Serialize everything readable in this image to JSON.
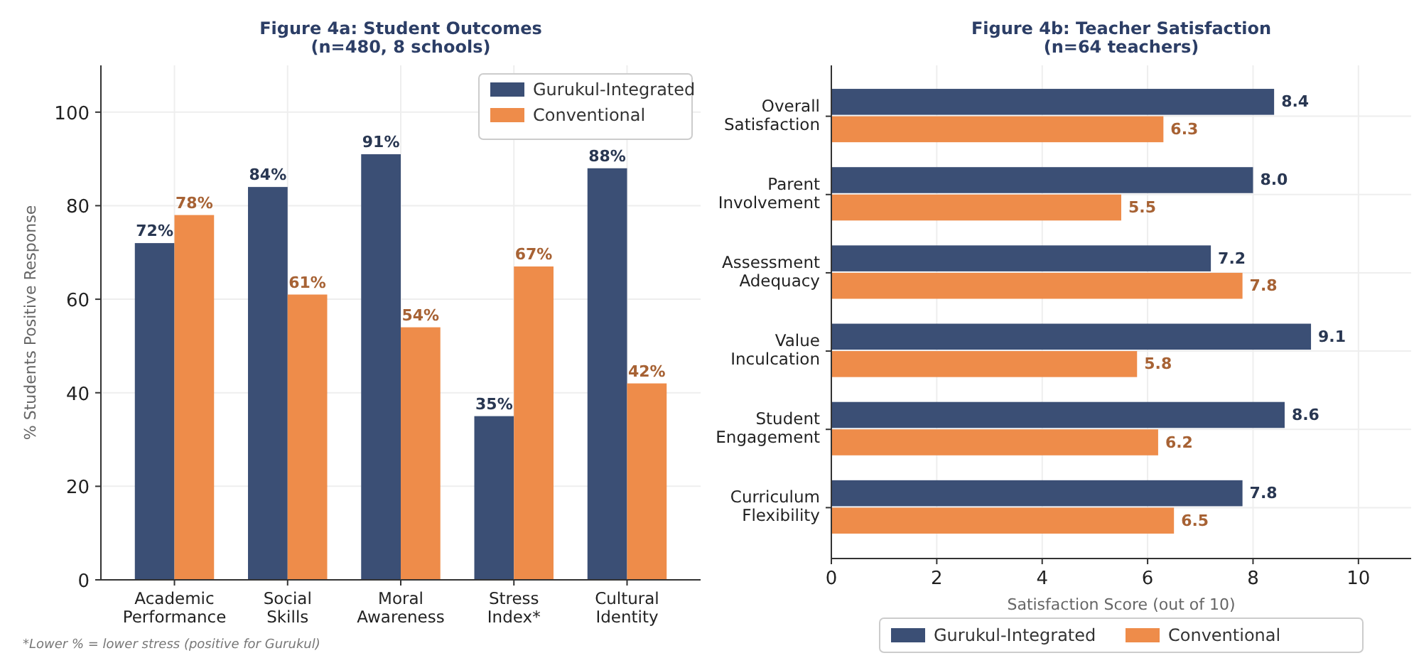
{
  "chart_data": [
    {
      "type": "bar",
      "title": "Figure 4a: Student Outcomes\n(n=480, 8 schools)",
      "ylabel": "% Students Positive Response",
      "categories": [
        "Academic\nPerformance",
        "Social\nSkills",
        "Moral\nAwareness",
        "Stress\nIndex*",
        "Cultural\nIdentity"
      ],
      "series": [
        {
          "name": "Gurukul-Integrated",
          "color": "#3b4f75",
          "values": [
            72,
            84,
            91,
            35,
            88
          ],
          "value_labels": [
            "72%",
            "84%",
            "91%",
            "35%",
            "88%"
          ]
        },
        {
          "name": "Conventional",
          "color": "#ee8c4a",
          "values": [
            78,
            61,
            54,
            67,
            42
          ],
          "value_labels": [
            "78%",
            "61%",
            "54%",
            "67%",
            "42%"
          ]
        }
      ],
      "ylim": [
        0,
        110
      ],
      "yticks": [
        0,
        20,
        40,
        60,
        80,
        100
      ],
      "grid": true,
      "legend": "top right",
      "annotations": [
        "*Lower % = lower stress (positive for Gurukul)"
      ]
    },
    {
      "type": "bar",
      "orientation": "horizontal",
      "title": "Figure 4b: Teacher Satisfaction\n(n=64 teachers)",
      "xlabel": "Satisfaction Score (out of 10)",
      "categories": [
        "Overall\nSatisfaction",
        "Parent\nInvolvement",
        "Assessment\nAdequacy",
        "Value\nInculcation",
        "Student\nEngagement",
        "Curriculum\nFlexibility"
      ],
      "series": [
        {
          "name": "Gurukul-Integrated",
          "color": "#3b4f75",
          "values": [
            8.4,
            8.0,
            7.2,
            9.1,
            8.6,
            7.8
          ],
          "value_labels": [
            "8.4",
            "8.0",
            "7.2",
            "9.1",
            "8.6",
            "7.8"
          ]
        },
        {
          "name": "Conventional",
          "color": "#ee8c4a",
          "values": [
            6.3,
            5.5,
            7.8,
            5.8,
            6.2,
            6.5
          ],
          "value_labels": [
            "6.3",
            "5.5",
            "7.8",
            "5.8",
            "6.2",
            "6.5"
          ]
        }
      ],
      "xlim": [
        0,
        11
      ],
      "xticks": [
        0,
        2,
        4,
        6,
        8,
        10
      ],
      "grid": true,
      "legend": "bottom"
    }
  ]
}
